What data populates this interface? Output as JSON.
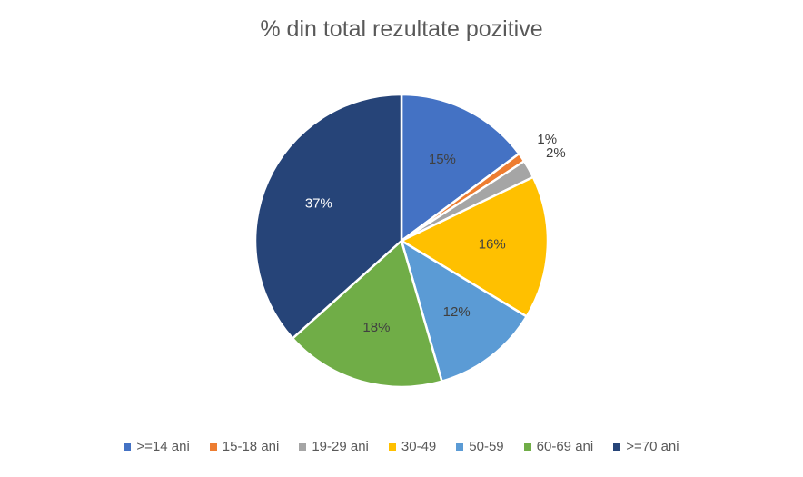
{
  "chart_data": {
    "type": "pie",
    "title": "% din total rezultate pozitive",
    "legend_position": "bottom",
    "slices": [
      {
        "label": ">=14 ani",
        "value": 15,
        "value_label": "15%",
        "color": "#4472C4",
        "label_color": "#404040"
      },
      {
        "label": "15-18 ani",
        "value": 1,
        "value_label": "1%",
        "color": "#ED7D31",
        "label_color": "#404040"
      },
      {
        "label": "19-29 ani",
        "value": 2,
        "value_label": "2%",
        "color": "#A5A5A5",
        "label_color": "#404040"
      },
      {
        "label": "30-49",
        "value": 16,
        "value_label": "16%",
        "color": "#FFC000",
        "label_color": "#404040"
      },
      {
        "label": "50-59",
        "value": 12,
        "value_label": "12%",
        "color": "#5B9BD5",
        "label_color": "#404040"
      },
      {
        "label": "60-69 ani",
        "value": 18,
        "value_label": "18%",
        "color": "#70AD47",
        "label_color": "#404040"
      },
      {
        "label": ">=70 ani",
        "value": 37,
        "value_label": "37%",
        "color": "#264478",
        "label_color": "#ffffff"
      }
    ]
  }
}
